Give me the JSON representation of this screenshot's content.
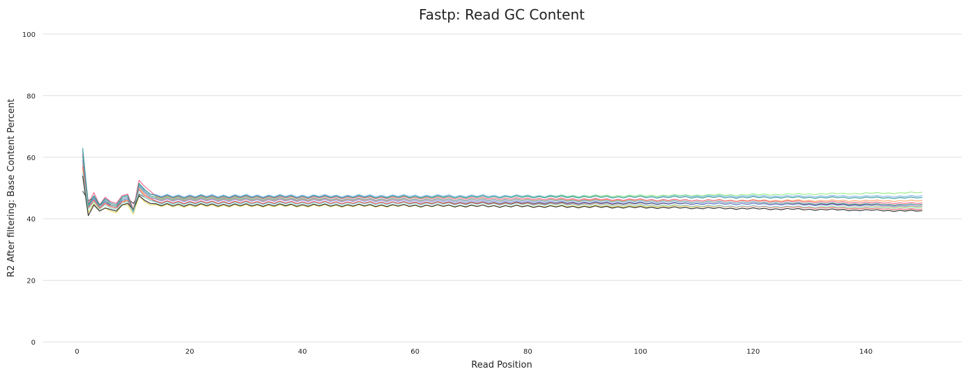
{
  "chart_data": {
    "type": "line",
    "title": "Fastp: Read GC Content",
    "xlabel": "Read Position",
    "ylabel": "R2 After filtering: Base Content Percent",
    "xlim": [
      -6,
      157
    ],
    "ylim": [
      0,
      100
    ],
    "x_ticks": [
      0,
      20,
      40,
      60,
      80,
      100,
      120,
      140
    ],
    "y_ticks": [
      0,
      20,
      40,
      60,
      80,
      100
    ],
    "grid": "horizontal",
    "legend": "none",
    "x_max": 150,
    "series": [
      {
        "color": "#7cb5ec",
        "profile": [
          62,
          45,
          47.5,
          44.5,
          46.5,
          45.5,
          45,
          47.5,
          47.5,
          42.5,
          51.5,
          49.5,
          48
        ],
        "plateau": 47.5,
        "tail": 47.3
      },
      {
        "color": "#434348",
        "profile": [
          49,
          46,
          46.5,
          44.5,
          45.5,
          44.5,
          44,
          46,
          46.5,
          45,
          48,
          47,
          46
        ],
        "plateau": 45.3,
        "tail": 44.5
      },
      {
        "color": "#90ed7d",
        "profile": [
          60,
          44.5,
          46.5,
          43.5,
          45.5,
          44,
          43.5,
          46,
          46,
          42.5,
          50.5,
          48.5,
          47
        ],
        "plateau": 46.8,
        "tail": 48.5
      },
      {
        "color": "#f7a35c",
        "profile": [
          58,
          43.5,
          46,
          43,
          45,
          43.5,
          43,
          45.5,
          45.5,
          42,
          50,
          48,
          46.5
        ],
        "plateau": 46.2,
        "tail": 45.8
      },
      {
        "color": "#8085e9",
        "profile": [
          59,
          44,
          46.5,
          43.5,
          45.5,
          44,
          43.5,
          46,
          46.5,
          42,
          50.5,
          48.5,
          47
        ],
        "plateau": 46.0,
        "tail": 44.0
      },
      {
        "color": "#f15c80",
        "profile": [
          61,
          45,
          48.5,
          44.5,
          47,
          45.5,
          45,
          47.5,
          48,
          43,
          52.5,
          50.5,
          49
        ],
        "plateau": 47.0,
        "tail": 45.0
      },
      {
        "color": "#e4d354",
        "profile": [
          56,
          42,
          45,
          42.5,
          43.5,
          42.5,
          42,
          44.5,
          44.5,
          41.5,
          47.5,
          45.5,
          44.5
        ],
        "plateau": 44.2,
        "tail": 43.8
      },
      {
        "color": "#2b908f",
        "profile": [
          63,
          44.5,
          47.5,
          44.5,
          46.5,
          45,
          44.5,
          47,
          47.5,
          42.5,
          51.5,
          49.5,
          48
        ],
        "plateau": 47.2,
        "tail": 46.8
      },
      {
        "color": "#f45b5b",
        "profile": [
          57,
          43.5,
          46,
          43.5,
          45,
          44,
          43.5,
          45.5,
          46,
          42.5,
          49.5,
          47.5,
          46.5
        ],
        "plateau": 45.4,
        "tail": 43.0
      },
      {
        "color": "#91e8e1",
        "profile": [
          55,
          43,
          45.5,
          43,
          44.5,
          43.5,
          43,
          45,
          45.5,
          42,
          49,
          47,
          46
        ],
        "plateau": 45.0,
        "tail": 43.5
      },
      {
        "color": "#1f1f1f",
        "profile": [
          54,
          41,
          44.5,
          42.5,
          43.5,
          43,
          42.5,
          44.5,
          45,
          43,
          47.5,
          46,
          45
        ],
        "plateau": 44.5,
        "tail": 42.5
      },
      {
        "color": "#5f9ea0",
        "profile": [
          60.5,
          44,
          47,
          44,
          46,
          44.5,
          44,
          46.5,
          47,
          42.5,
          51,
          49,
          47.5
        ],
        "plateau": 46.5,
        "tail": 44.5
      }
    ]
  }
}
